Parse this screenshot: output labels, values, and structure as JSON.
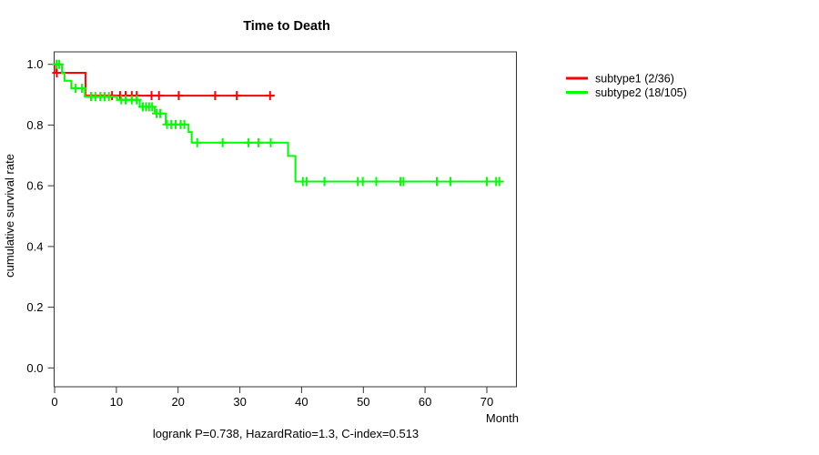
{
  "title": "Time to Death",
  "caption": "logrank P=0.738, HazardRatio=1.3, C-index=0.513",
  "axes": {
    "x_label": "Month",
    "y_label": "cumulative survival rate",
    "x_ticks": [
      0,
      10,
      20,
      30,
      40,
      50,
      60,
      70
    ],
    "y_ticks": [
      {
        "value": 0.0,
        "label": "0.0"
      },
      {
        "value": 0.2,
        "label": "0.2"
      },
      {
        "value": 0.4,
        "label": "0.4"
      },
      {
        "value": 0.6,
        "label": "0.6"
      },
      {
        "value": 0.8,
        "label": "0.8"
      },
      {
        "value": 1.0,
        "label": "1.0"
      }
    ]
  },
  "legend": {
    "items": [
      {
        "label": "subtype1 (2/36)",
        "color": "#ff0000"
      },
      {
        "label": "subtype2 (18/105)",
        "color": "#00ff00"
      }
    ]
  },
  "chart_data": {
    "type": "line",
    "variant": "kaplan-meier-step-survival",
    "title": "Time to Death",
    "xlabel": "Month",
    "ylabel": "cumulative survival rate",
    "xlim": [
      0,
      75
    ],
    "ylim": [
      0,
      1.04
    ],
    "grid": false,
    "legend_position": "right-outside",
    "annotation": "logrank P=0.738, HazardRatio=1.3, C-index=0.513",
    "series": [
      {
        "name": "subtype1 (2/36)",
        "color": "#ff0000",
        "steps": [
          [
            0,
            1.0
          ],
          [
            0.2,
            0.972
          ],
          [
            5.0,
            0.897
          ],
          [
            35.6,
            0.897
          ]
        ],
        "censor_marks": [
          [
            0.35,
            0.972
          ],
          [
            9.3,
            0.897
          ],
          [
            10.6,
            0.897
          ],
          [
            11.5,
            0.897
          ],
          [
            12.5,
            0.897
          ],
          [
            13.3,
            0.897
          ],
          [
            15.7,
            0.897
          ],
          [
            16.9,
            0.897
          ],
          [
            20.1,
            0.897
          ],
          [
            26.0,
            0.897
          ],
          [
            29.5,
            0.897
          ],
          [
            34.9,
            0.897
          ]
        ]
      },
      {
        "name": "subtype2 (18/105)",
        "color": "#00ff00",
        "steps": [
          [
            0,
            1.0
          ],
          [
            1.2,
            0.971
          ],
          [
            1.6,
            0.946
          ],
          [
            2.7,
            0.921
          ],
          [
            4.9,
            0.894
          ],
          [
            10.1,
            0.883
          ],
          [
            13.8,
            0.86
          ],
          [
            16.2,
            0.838
          ],
          [
            18.0,
            0.802
          ],
          [
            21.7,
            0.777
          ],
          [
            22.2,
            0.742
          ],
          [
            37.8,
            0.698
          ],
          [
            39.0,
            0.614
          ],
          [
            72.5,
            0.614
          ]
        ],
        "censor_marks": [
          [
            0.3,
            1.0
          ],
          [
            0.75,
            1.0
          ],
          [
            3.4,
            0.921
          ],
          [
            4.4,
            0.921
          ],
          [
            5.9,
            0.894
          ],
          [
            6.6,
            0.894
          ],
          [
            7.4,
            0.894
          ],
          [
            8.1,
            0.894
          ],
          [
            8.8,
            0.894
          ],
          [
            10.8,
            0.883
          ],
          [
            11.5,
            0.883
          ],
          [
            12.5,
            0.883
          ],
          [
            13.3,
            0.883
          ],
          [
            14.3,
            0.86
          ],
          [
            14.8,
            0.86
          ],
          [
            15.3,
            0.86
          ],
          [
            15.8,
            0.86
          ],
          [
            16.5,
            0.838
          ],
          [
            17.1,
            0.838
          ],
          [
            18.2,
            0.802
          ],
          [
            18.9,
            0.802
          ],
          [
            19.6,
            0.802
          ],
          [
            20.4,
            0.802
          ],
          [
            21.0,
            0.802
          ],
          [
            23.1,
            0.742
          ],
          [
            27.2,
            0.742
          ],
          [
            31.4,
            0.742
          ],
          [
            33.0,
            0.742
          ],
          [
            35.0,
            0.742
          ],
          [
            40.2,
            0.614
          ],
          [
            40.8,
            0.614
          ],
          [
            43.7,
            0.614
          ],
          [
            49.1,
            0.614
          ],
          [
            49.9,
            0.614
          ],
          [
            52.1,
            0.614
          ],
          [
            56.0,
            0.614
          ],
          [
            56.5,
            0.614
          ],
          [
            61.9,
            0.614
          ],
          [
            64.1,
            0.614
          ],
          [
            70.0,
            0.614
          ],
          [
            71.5,
            0.614
          ],
          [
            72.0,
            0.614
          ]
        ]
      }
    ]
  }
}
